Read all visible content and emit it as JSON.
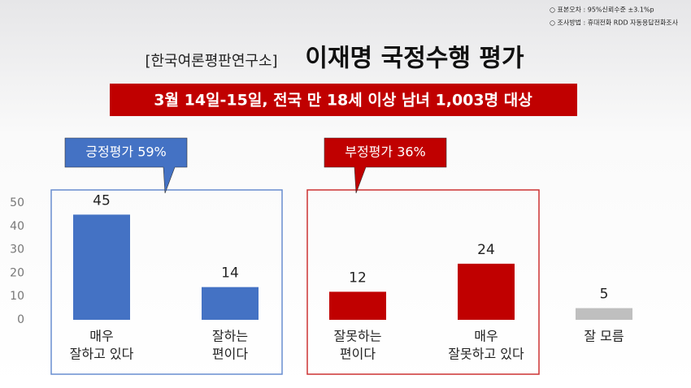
{
  "notes": [
    "○ 표본오차 : 95%신뢰수준 ±3.1%p",
    "○ 조사방법 : 휴대전화 RDD 자동응답전화조사"
  ],
  "chart_data": {
    "type": "bar",
    "source": "[한국여론평판연구소]",
    "title": "이재명 국정수행 평가",
    "subtitle": "3월 14일-15일, 전국 만 18세 이상 남녀 1,003명 대상",
    "groups": [
      {
        "label": "긍정평가 59%",
        "color": "#4472c4"
      },
      {
        "label": "부정평가 36%",
        "color": "#c00000"
      }
    ],
    "categories": [
      [
        "매우",
        "잘하고 있다"
      ],
      [
        "잘하는",
        "편이다"
      ],
      [
        "잘못하는",
        "편이다"
      ],
      [
        "매우",
        "잘못하고 있다"
      ],
      [
        "잘 모름"
      ]
    ],
    "values": [
      45,
      14,
      12,
      24,
      5
    ],
    "colors": [
      "#4472c4",
      "#4472c4",
      "#c00000",
      "#c00000",
      "#bfbfbf"
    ],
    "ylim": [
      0,
      50
    ],
    "yticks": [
      0,
      10,
      20,
      30,
      40,
      50
    ],
    "grid": false
  }
}
